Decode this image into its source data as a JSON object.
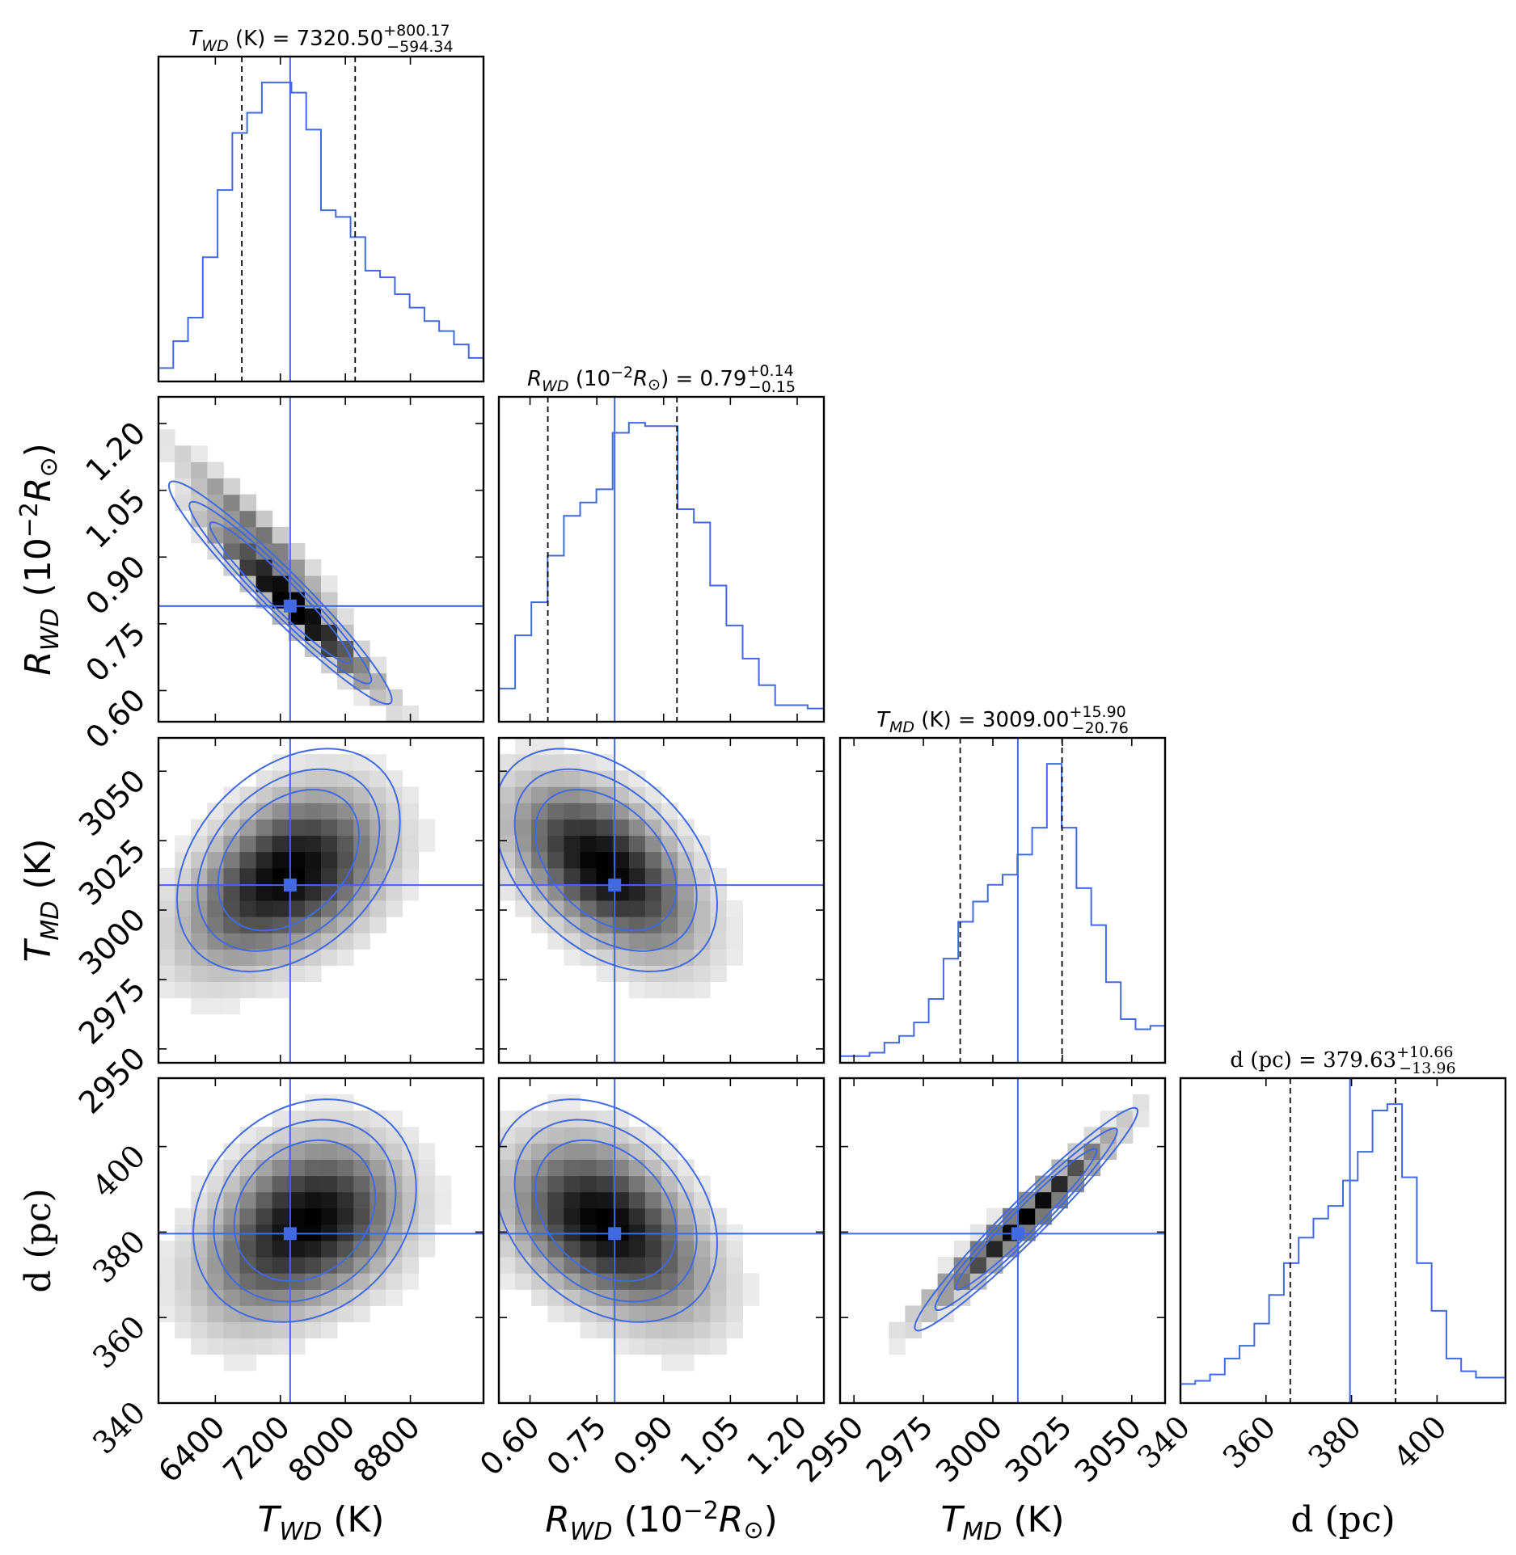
{
  "chart_data": {
    "type": "corner",
    "colors": {
      "accent": "#4169e1",
      "quantile": "#000000",
      "frame": "#000000"
    },
    "parameters": [
      {
        "key": "twd",
        "label_main": "T",
        "label_sub": "WD",
        "label_rest": " (K)",
        "title_value": "7320.50",
        "title_plus": "+800.17",
        "title_minus": "−594.34",
        "range": [
          5700,
          9700
        ],
        "ticks": [
          6400,
          7200,
          8000,
          8800
        ],
        "tick_labels": [
          "6400",
          "7200",
          "8000",
          "8800"
        ],
        "median": 7320.5,
        "q16": 6726.16,
        "q84": 8120.67,
        "truth": 7320.5,
        "hist": [
          4,
          12,
          19,
          37,
          57,
          74,
          80,
          89,
          89,
          86,
          75,
          51,
          49,
          43,
          33,
          31,
          26,
          22,
          18,
          15,
          11,
          7
        ]
      },
      {
        "key": "rwd",
        "label_main": "R",
        "label_sub": "WD",
        "label_rest": " (10",
        "label_exp": "−2",
        "label_tail": "R",
        "label_sun": "⊙",
        "title_value": "0.79",
        "title_plus": "+0.14",
        "title_minus": "−0.15",
        "range": [
          0.53,
          1.26
        ],
        "ticks": [
          0.6,
          0.75,
          0.9,
          1.05,
          1.2
        ],
        "tick_labels": [
          "0.60",
          "0.75",
          "0.90",
          "1.05",
          "1.20"
        ],
        "median": 0.79,
        "q16": 0.64,
        "q84": 0.93,
        "truth": 0.79,
        "hist": [
          10,
          26,
          36,
          50,
          62,
          66,
          70,
          87,
          90,
          89,
          89,
          64,
          60,
          41,
          29,
          19,
          11,
          5,
          5,
          4
        ]
      },
      {
        "key": "tmd",
        "label_main": "T",
        "label_sub": "MD",
        "label_rest": " (K)",
        "title_value": "3009.00",
        "title_plus": "+15.90",
        "title_minus": "−20.76",
        "range": [
          2945,
          3062
        ],
        "ticks": [
          2950,
          2975,
          3000,
          3025,
          3050
        ],
        "tick_labels": [
          "2950",
          "2975",
          "3000",
          "3025",
          "3050"
        ],
        "median": 3009.0,
        "q16": 2988.24,
        "q84": 3024.9,
        "truth": 3009.0,
        "hist": [
          2,
          2,
          3,
          6,
          8,
          12,
          19,
          31,
          42,
          48,
          53,
          56,
          62,
          70,
          89,
          70,
          52,
          41,
          24,
          13,
          10,
          11
        ]
      },
      {
        "key": "d",
        "label_main": "d (pc)",
        "title_value": "379.63",
        "title_plus": "+10.66",
        "title_minus": "−13.96",
        "range": [
          340,
          416
        ],
        "ticks": [
          340,
          360,
          380,
          400
        ],
        "tick_labels": [
          "340",
          "360",
          "380",
          "400"
        ],
        "median": 379.63,
        "q16": 365.67,
        "q84": 390.29,
        "truth": 379.63,
        "hist": [
          6,
          7,
          9,
          14,
          18,
          25,
          34,
          44,
          52,
          58,
          62,
          70,
          79,
          92,
          94,
          71,
          44,
          29,
          14,
          10,
          8,
          8
        ]
      }
    ],
    "density": {
      "twd-rwd": {
        "cov": [
          [
            1,
            -0.96
          ],
          [
            -0.96,
            1
          ]
        ],
        "centers": [
          [
            7200,
            0.82
          ],
          [
            6900,
            0.96
          ],
          [
            7600,
            0.75
          ]
        ]
      },
      "twd-tmd": {
        "cov": [
          [
            1,
            0.35
          ],
          [
            0.35,
            1
          ]
        ],
        "centers": [
          [
            7300,
            3018
          ],
          [
            6700,
            3000
          ],
          [
            7800,
            3012
          ]
        ]
      },
      "twd-d": {
        "cov": [
          [
            1,
            0.2
          ],
          [
            0.2,
            1
          ]
        ],
        "centers": [
          [
            7500,
            385
          ],
          [
            6900,
            372
          ],
          [
            8000,
            382
          ]
        ]
      },
      "rwd-tmd": {
        "cov": [
          [
            1,
            -0.4
          ],
          [
            -0.4,
            1
          ]
        ],
        "centers": [
          [
            0.77,
            3018
          ],
          [
            0.85,
            3003
          ],
          [
            0.68,
            3022
          ]
        ]
      },
      "rwd-d": {
        "cov": [
          [
            1,
            -0.3
          ],
          [
            -0.3,
            1
          ]
        ],
        "centers": [
          [
            0.77,
            385
          ],
          [
            0.88,
            372
          ],
          [
            0.68,
            382
          ]
        ]
      },
      "tmd-d": {
        "cov": [
          [
            1,
            0.97
          ],
          [
            0.97,
            1
          ]
        ],
        "centers": [
          [
            3012,
            383
          ],
          [
            2995,
            375
          ],
          [
            3022,
            389
          ]
        ]
      }
    }
  }
}
